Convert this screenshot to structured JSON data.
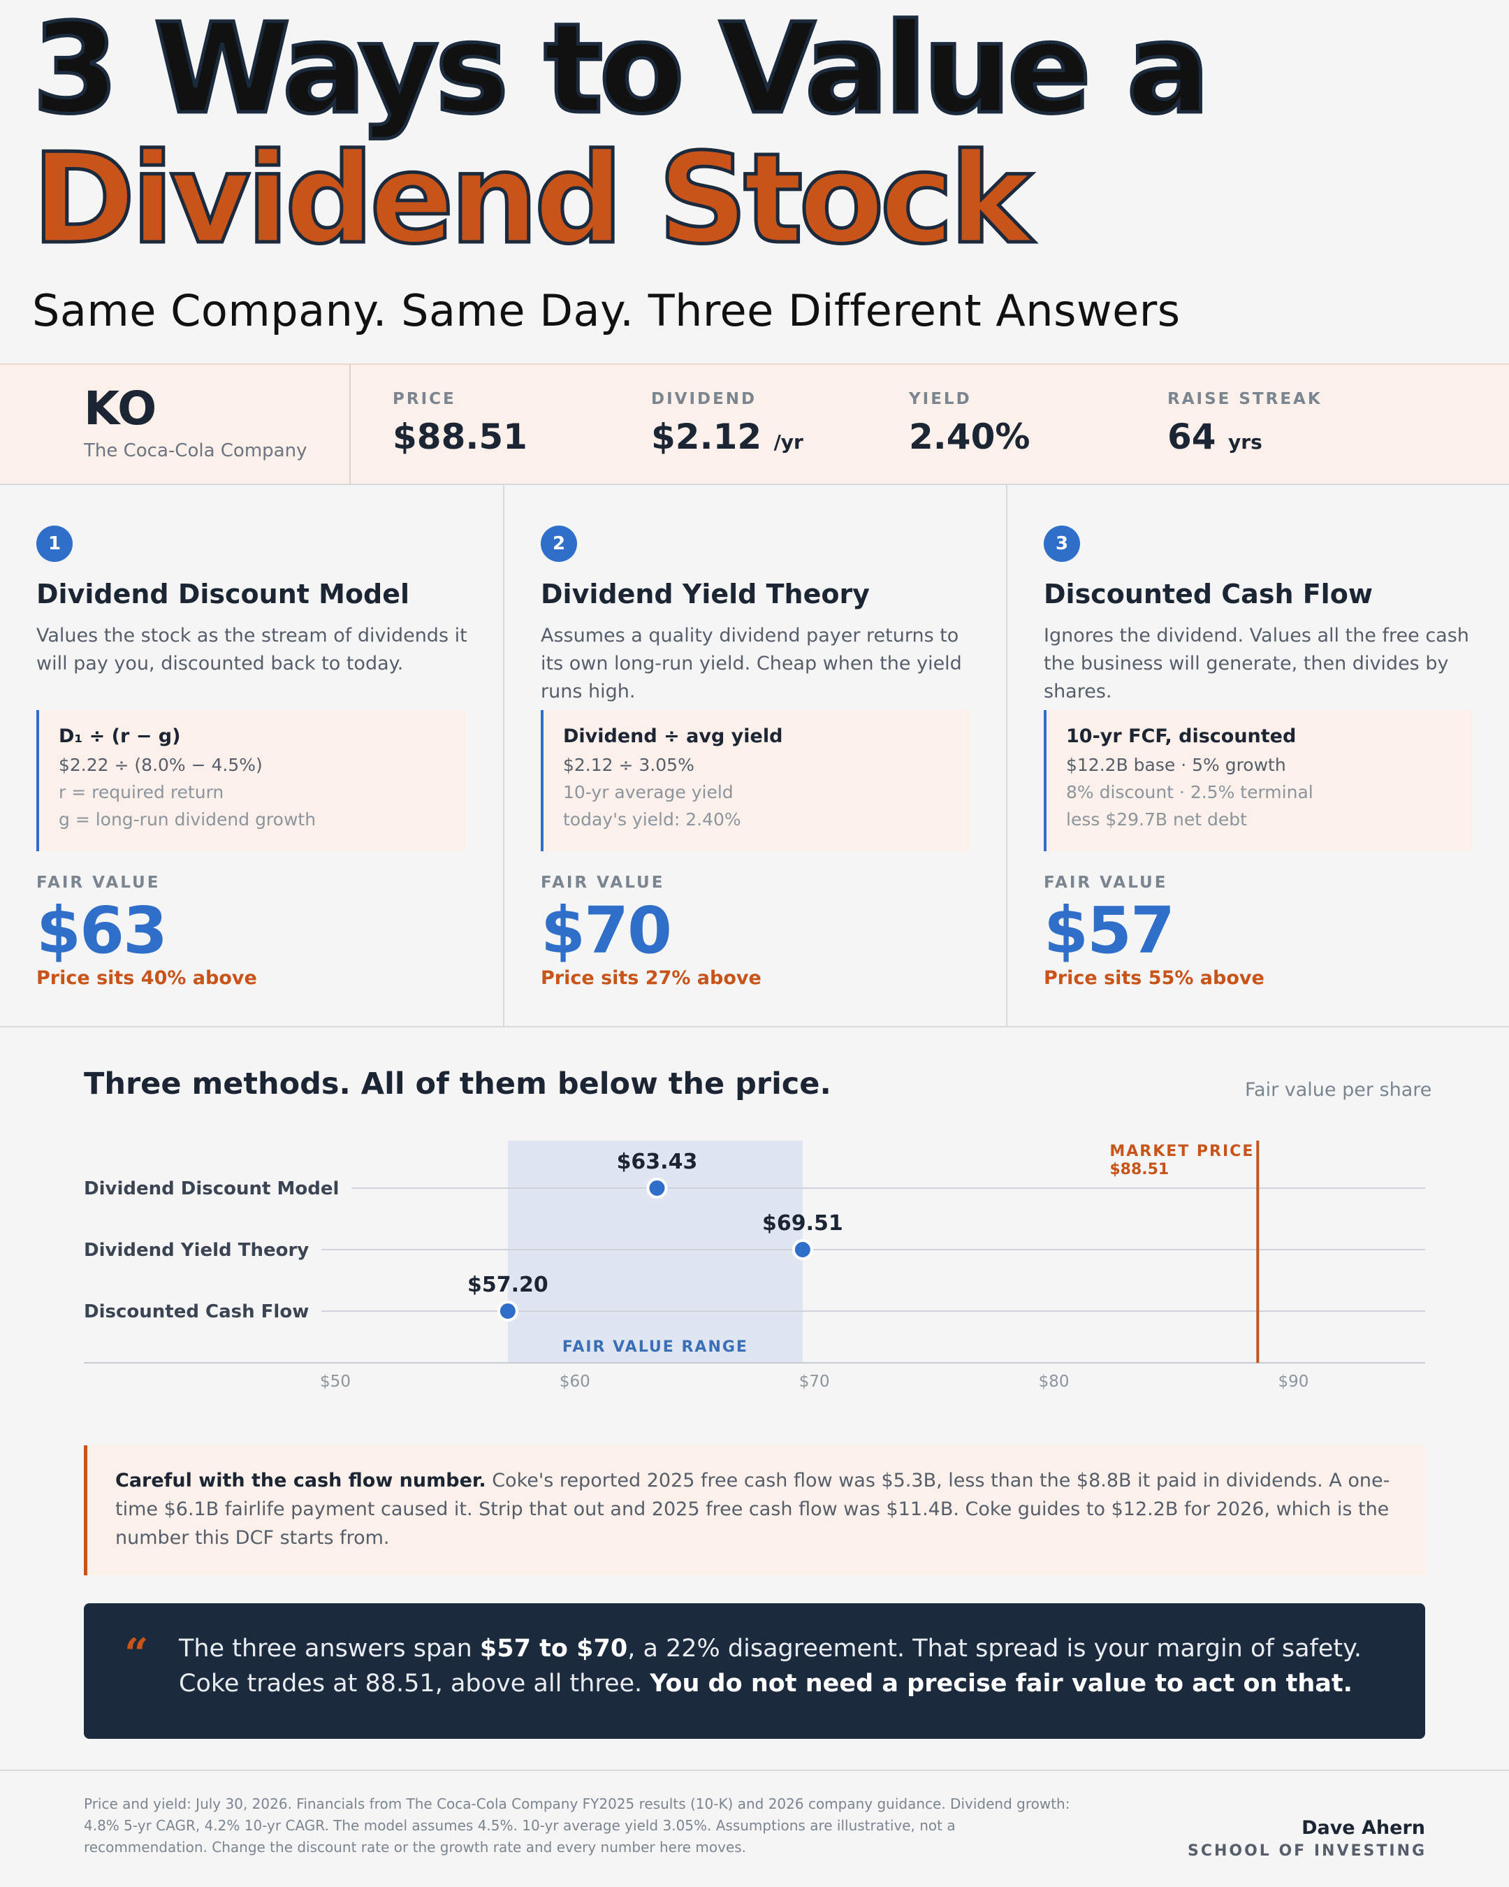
{
  "header": {
    "title_line1": "3 Ways to Value a",
    "title_line2": "Dividend Stock",
    "subtitle": "Same Company. Same Day. Three Different Answers"
  },
  "ticker": {
    "symbol": "KO",
    "company": "The Coca-Cola Company",
    "stats": [
      {
        "label": "PRICE",
        "value": "$88.51",
        "unit": ""
      },
      {
        "label": "DIVIDEND",
        "value": "$2.12",
        "unit": "/yr"
      },
      {
        "label": "YIELD",
        "value": "2.40%",
        "unit": ""
      },
      {
        "label": "RAISE STREAK",
        "value": "64",
        "unit": "yrs"
      }
    ]
  },
  "methods": [
    {
      "number": "1",
      "title": "Dividend Discount Model",
      "description": "Values the stock as the stream of dividends it will pay you, discounted back to today.",
      "formula": "D₁ ÷ (r − g)",
      "formula_line": "$2.22 ÷ (8.0% − 4.5%)",
      "notes": [
        "r = required return",
        "g = long-run dividend growth"
      ],
      "fair_value_label": "FAIR VALUE",
      "fair_value": "$63",
      "verdict": "Price sits 40% above"
    },
    {
      "number": "2",
      "title": "Dividend Yield Theory",
      "description": "Assumes a quality dividend payer returns to its own long-run yield. Cheap when the yield runs high.",
      "formula": "Dividend ÷ avg yield",
      "formula_line": "$2.12 ÷ 3.05%",
      "notes": [
        "10-yr average yield",
        "today's yield: 2.40%"
      ],
      "fair_value_label": "FAIR VALUE",
      "fair_value": "$70",
      "verdict": "Price sits 27% above"
    },
    {
      "number": "3",
      "title": "Discounted Cash Flow",
      "description": "Ignores the dividend. Values all the free cash the business will generate, then divides by shares.",
      "formula": "10-yr FCF, discounted",
      "formula_line": "$12.2B base · 5% growth",
      "notes": [
        "8% discount · 2.5% terminal",
        "less $29.7B net debt"
      ],
      "fair_value_label": "FAIR VALUE",
      "fair_value": "$57",
      "verdict": "Price sits 55% above"
    }
  ],
  "chart_section": {
    "title": "Three methods. All of them below the price.",
    "subtitle": "Fair value per share"
  },
  "chart_data": {
    "type": "scatter",
    "categories": [
      "Dividend Discount Model",
      "Dividend Yield Theory",
      "Discounted Cash Flow"
    ],
    "values": [
      63.43,
      69.51,
      57.2
    ],
    "value_labels": [
      "$63.43",
      "$69.51",
      "$57.20"
    ],
    "xlim": [
      39.5,
      95.5
    ],
    "xticks": [
      50,
      60,
      70,
      80,
      90
    ],
    "xtick_labels": [
      "$50",
      "$60",
      "$70",
      "$80",
      "$90"
    ],
    "range": {
      "low": 57.2,
      "high": 69.51,
      "label": "FAIR VALUE RANGE"
    },
    "market_price": {
      "value": 88.51,
      "label": "MARKET PRICE",
      "value_label": "$88.51"
    },
    "colors": {
      "point": "#2f6fc9",
      "market": "#c8541a",
      "range": "#dfe6f1",
      "range_text": "#3b6fb5"
    },
    "grid": true
  },
  "callout": {
    "bold": "Careful with the cash flow number.",
    "text": " Coke's reported 2025 free cash flow was $5.3B, less than the $8.8B it paid in dividends. A one-time $6.1B fairlife payment caused it. Strip that out and 2025 free cash flow was $11.4B. Coke guides to $12.2B for 2026, which is the number this DCF starts from."
  },
  "quote": {
    "mark": "“",
    "part1": "The three answers span ",
    "bold1": "$57 to $70",
    "part2": ", a 22% disagreement. That spread is your margin of safety. Coke trades at 88.51, above all three. ",
    "bold2": "You do not need a precise fair value to act on that."
  },
  "footer": {
    "note": "Price and yield: July 30, 2026. Financials from The Coca-Cola Company FY2025 results (10-K) and 2026 company guidance. Dividend growth: 4.8% 5-yr CAGR, 4.2% 10-yr CAGR. The model assumes 4.5%. 10-yr average yield 3.05%. Assumptions are illustrative, not a recommendation. Change the discount rate or the growth rate and every number here moves.",
    "brand_name": "Dave Ahern",
    "brand_school": "SCHOOL OF INVESTING"
  },
  "colors": {
    "accent": "#c8541a",
    "primary": "#2f6fc9",
    "navy": "#1b2a3d"
  }
}
